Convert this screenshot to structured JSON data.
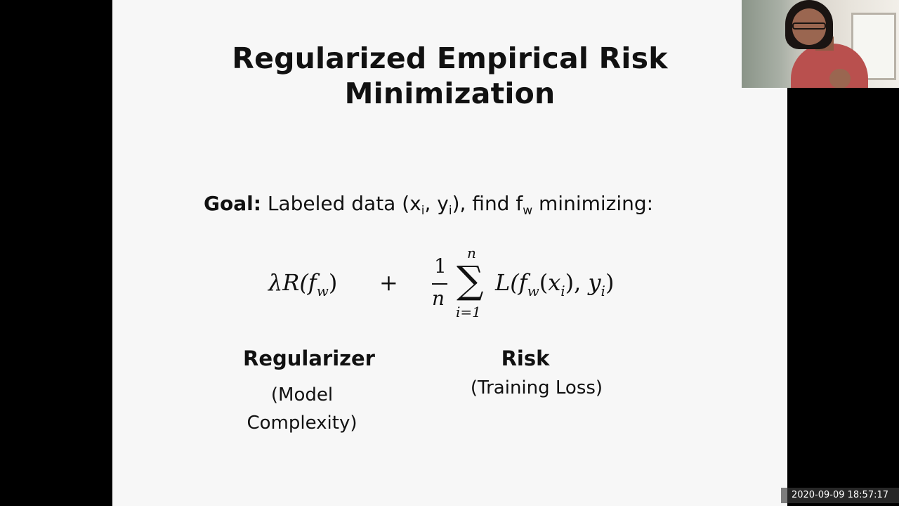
{
  "slide": {
    "title_line_1": "Regularized Empirical Risk",
    "title_line_2": "Minimization",
    "goal": {
      "label": "Goal:",
      "text_1": " Labeled data (x",
      "sub_1": "i",
      "text_2": ", y",
      "sub_2": "i",
      "text_3": "), find f",
      "sub_3": "w",
      "text_4": " minimizing:"
    },
    "formula": {
      "lambda": "λR(",
      "f": "f",
      "w": "w",
      "close": ")",
      "plus": "+",
      "numerator": "1",
      "denominator": "n",
      "sum_sign": "∑",
      "sum_top": "n",
      "sum_bottom": "i=1",
      "loss_1": "L(",
      "loss_f": "f",
      "loss_w": "w",
      "loss_2": "(",
      "loss_x": "x",
      "loss_i1": "i",
      "loss_3": "), ",
      "loss_y": "y",
      "loss_i2": "i",
      "loss_4": ")"
    },
    "regularizer": {
      "label": "Regularizer",
      "sub_line_1": "(Model",
      "sub_line_2": "Complexity)"
    },
    "risk": {
      "label": "Risk",
      "sub": "(Training Loss)"
    }
  },
  "overlay": {
    "timestamp": "2020-09-09  18:57:17"
  }
}
